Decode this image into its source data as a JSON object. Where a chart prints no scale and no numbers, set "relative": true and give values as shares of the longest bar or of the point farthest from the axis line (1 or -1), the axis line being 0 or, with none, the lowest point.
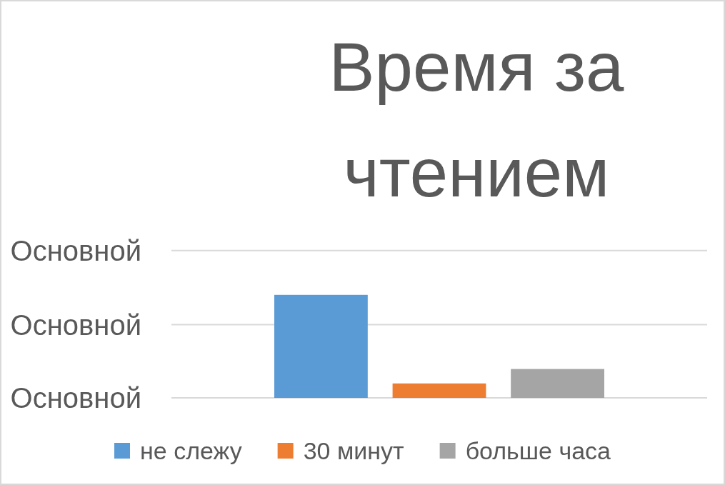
{
  "chart_data": {
    "type": "bar",
    "title": "Время за чтением",
    "relative": true,
    "categories": [
      null
    ],
    "series": [
      {
        "name": "не слежу",
        "color": "#5b9bd5",
        "values": [
          1
        ]
      },
      {
        "name": "30 минут",
        "color": "#ed7d31",
        "values": [
          0.14
        ]
      },
      {
        "name": "больше часа",
        "color": "#a5a5a5",
        "values": [
          0.28
        ]
      }
    ],
    "ref_lines": [
      {
        "axis": "y",
        "value": 1.43,
        "label": "Основной",
        "color": "#d9d9d9"
      },
      {
        "axis": "y",
        "value": 0.71,
        "label": "Основной",
        "color": "#d9d9d9"
      },
      {
        "axis": "y",
        "value": 0,
        "label": "Основной",
        "color": "#d9d9d9"
      }
    ],
    "legend": "bottom"
  }
}
